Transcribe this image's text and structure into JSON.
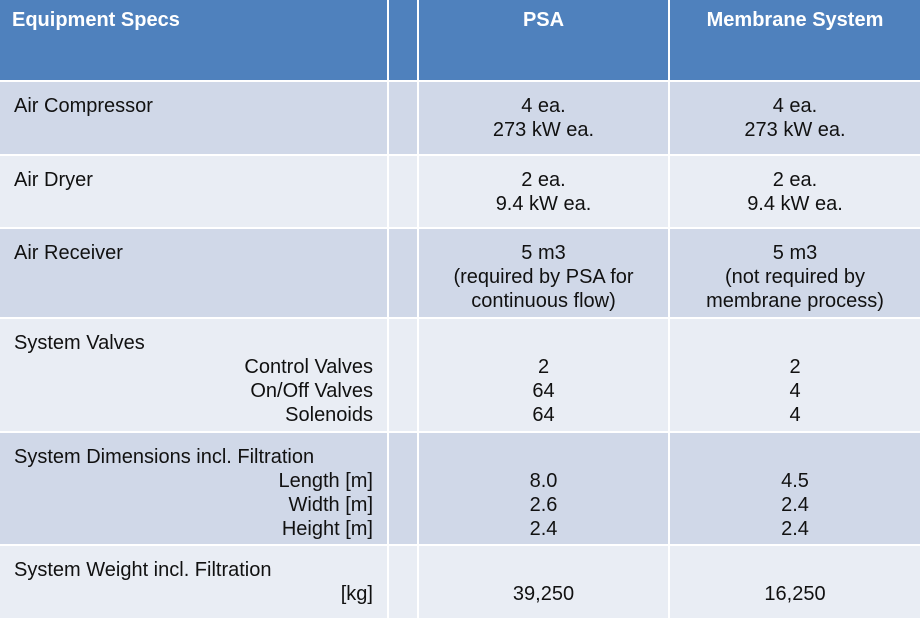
{
  "header": {
    "col1": "Equipment Specs",
    "col2": "",
    "col3": "PSA",
    "col4": "Membrane System"
  },
  "rows": {
    "air_compressor": {
      "label": "Air Compressor",
      "psa": [
        "4 ea.",
        "273 kW ea."
      ],
      "membrane": [
        "4 ea.",
        "273 kW ea."
      ]
    },
    "air_dryer": {
      "label": "Air Dryer",
      "psa": [
        "2 ea.",
        "9.4 kW ea."
      ],
      "membrane": [
        "2 ea.",
        "9.4 kW ea."
      ]
    },
    "air_receiver": {
      "label": "Air Receiver",
      "psa": [
        "5 m3",
        "(required by PSA for",
        "continuous flow)"
      ],
      "membrane": [
        "5 m3",
        "(not required by",
        "membrane process)"
      ]
    },
    "system_valves": {
      "label": "System Valves",
      "items": [
        "Control Valves",
        "On/Off Valves",
        "Solenoids"
      ],
      "psa": [
        "2",
        "64",
        "64"
      ],
      "membrane": [
        "2",
        "4",
        "4"
      ]
    },
    "system_dimensions": {
      "label": "System Dimensions incl. Filtration",
      "items": [
        "Length [m]",
        "Width [m]",
        "Height [m]"
      ],
      "psa": [
        "8.0",
        "2.6",
        "2.4"
      ],
      "membrane": [
        "4.5",
        "2.4",
        "2.4"
      ]
    },
    "system_weight": {
      "label": "System Weight incl. Filtration",
      "unit": "[kg]",
      "psa": "39,250",
      "membrane": "16,250"
    }
  }
}
